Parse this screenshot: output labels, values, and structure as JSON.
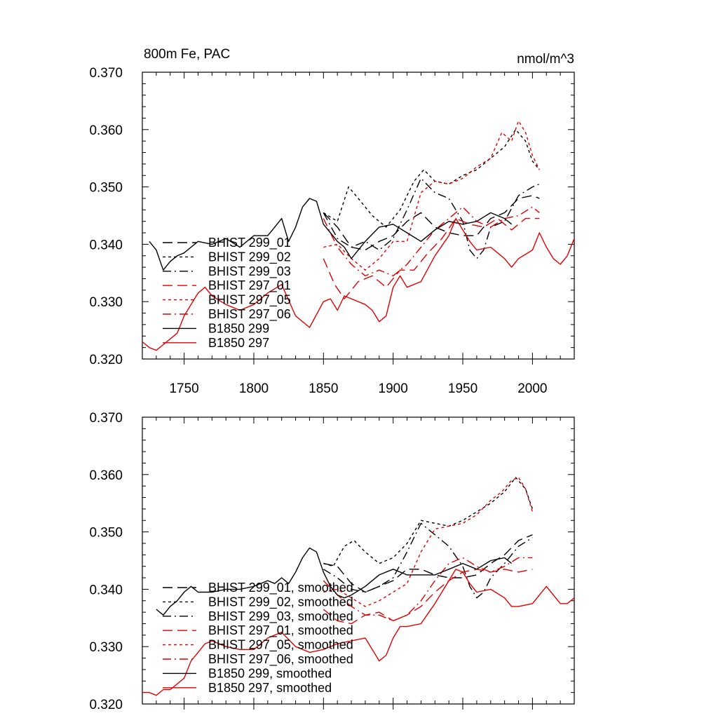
{
  "chart_data": [
    {
      "type": "line",
      "title": "800m Fe, PAC",
      "units": "nmol/m^3",
      "xlim": [
        1720,
        2030
      ],
      "ylim": [
        0.32,
        0.37
      ],
      "xticks": [
        1750,
        1800,
        1850,
        1900,
        1950,
        2000
      ],
      "xtick_labels": [
        "1750",
        "1800",
        "1850",
        "1900",
        "1950",
        "2000"
      ],
      "yticks": [
        0.32,
        0.33,
        0.34,
        0.35,
        0.36,
        0.37
      ],
      "ytick_labels": [
        "0.320",
        "0.330",
        "0.340",
        "0.350",
        "0.360",
        "0.370"
      ],
      "legend_position": "lower-left",
      "series": [
        {
          "name": "BHIST 299_01",
          "color": "#000000",
          "dash": "long-dash",
          "x": [
            1850,
            1860,
            1870,
            1880,
            1890,
            1900,
            1910,
            1920,
            1930,
            1940,
            1950,
            1960,
            1970,
            1980,
            1990,
            2000,
            2005
          ],
          "y": [
            0.3455,
            0.343,
            0.3395,
            0.339,
            0.3405,
            0.3415,
            0.344,
            0.3455,
            0.343,
            0.342,
            0.3415,
            0.3415,
            0.3445,
            0.3455,
            0.348,
            0.3485,
            0.348
          ]
        },
        {
          "name": "BHIST 299_02",
          "color": "#000000",
          "dash": "short-dash",
          "x": [
            1850,
            1860,
            1868,
            1875,
            1885,
            1895,
            1905,
            1915,
            1922,
            1930,
            1940,
            1950,
            1960,
            1970,
            1980,
            1988,
            1995,
            2000,
            2005
          ],
          "y": [
            0.3455,
            0.344,
            0.35,
            0.348,
            0.345,
            0.343,
            0.346,
            0.351,
            0.353,
            0.351,
            0.3505,
            0.352,
            0.353,
            0.355,
            0.357,
            0.36,
            0.358,
            0.3545,
            0.353
          ]
        },
        {
          "name": "BHIST 299_03",
          "color": "#000000",
          "dash": "dash-dot",
          "x": [
            1850,
            1860,
            1870,
            1880,
            1890,
            1900,
            1910,
            1920,
            1930,
            1940,
            1950,
            1955,
            1960,
            1965,
            1970,
            1980,
            1990,
            2000,
            2005
          ],
          "y": [
            0.3455,
            0.341,
            0.3395,
            0.3405,
            0.339,
            0.341,
            0.346,
            0.3515,
            0.349,
            0.348,
            0.344,
            0.339,
            0.3375,
            0.339,
            0.343,
            0.344,
            0.3485,
            0.35,
            0.3505
          ]
        },
        {
          "name": "BHIST 297_01",
          "color": "#e00000",
          "dash": "long-dash",
          "x": [
            1850,
            1858,
            1865,
            1875,
            1885,
            1895,
            1905,
            1915,
            1925,
            1935,
            1945,
            1955,
            1965,
            1975,
            1985,
            1995,
            2005
          ],
          "y": [
            0.3375,
            0.333,
            0.3305,
            0.3335,
            0.3345,
            0.3325,
            0.3355,
            0.3355,
            0.3385,
            0.341,
            0.3445,
            0.3435,
            0.343,
            0.3445,
            0.3425,
            0.3445,
            0.3445
          ]
        },
        {
          "name": "BHIST 297_05",
          "color": "#e00000",
          "dash": "short-dash",
          "x": [
            1850,
            1860,
            1870,
            1880,
            1890,
            1900,
            1910,
            1920,
            1930,
            1940,
            1950,
            1960,
            1970,
            1978,
            1985,
            1990,
            1995,
            2000,
            2005
          ],
          "y": [
            0.3395,
            0.34,
            0.3375,
            0.3355,
            0.3375,
            0.3405,
            0.3405,
            0.349,
            0.351,
            0.3505,
            0.3515,
            0.3535,
            0.355,
            0.3595,
            0.358,
            0.3615,
            0.3595,
            0.3555,
            0.353
          ]
        },
        {
          "name": "BHIST 297_06",
          "color": "#e00000",
          "dash": "dash-dot",
          "x": [
            1850,
            1860,
            1870,
            1880,
            1890,
            1900,
            1910,
            1920,
            1930,
            1940,
            1950,
            1960,
            1970,
            1980,
            1990,
            2000,
            2005
          ],
          "y": [
            0.3445,
            0.3395,
            0.3365,
            0.3345,
            0.3355,
            0.3345,
            0.3365,
            0.3395,
            0.3425,
            0.3445,
            0.3465,
            0.344,
            0.343,
            0.3445,
            0.345,
            0.3465,
            0.3455
          ]
        },
        {
          "name": "B1850 299",
          "color": "#000000",
          "dash": "solid",
          "x": [
            1725,
            1730,
            1735,
            1740,
            1745,
            1750,
            1755,
            1760,
            1770,
            1780,
            1790,
            1800,
            1810,
            1815,
            1820,
            1825,
            1830,
            1835,
            1840,
            1845,
            1850,
            1855,
            1860,
            1865,
            1870,
            1880,
            1890,
            1900,
            1910,
            1920,
            1930,
            1940,
            1950,
            1960,
            1970,
            1980,
            1985
          ],
          "y": [
            0.3405,
            0.339,
            0.3355,
            0.337,
            0.338,
            0.3385,
            0.3395,
            0.3405,
            0.34,
            0.341,
            0.3395,
            0.3415,
            0.3415,
            0.343,
            0.3445,
            0.3405,
            0.343,
            0.3465,
            0.348,
            0.3475,
            0.3435,
            0.342,
            0.3405,
            0.3395,
            0.3375,
            0.3405,
            0.343,
            0.3435,
            0.342,
            0.3405,
            0.3425,
            0.344,
            0.3435,
            0.344,
            0.3455,
            0.3445,
            0.3435
          ]
        },
        {
          "name": "B1850 297",
          "color": "#e00000",
          "dash": "solid",
          "x": [
            1720,
            1725,
            1730,
            1735,
            1740,
            1745,
            1750,
            1755,
            1760,
            1765,
            1770,
            1780,
            1790,
            1800,
            1810,
            1820,
            1830,
            1840,
            1850,
            1855,
            1860,
            1865,
            1870,
            1880,
            1885,
            1890,
            1895,
            1900,
            1905,
            1910,
            1920,
            1930,
            1940,
            1945,
            1950,
            1955,
            1960,
            1970,
            1980,
            1985,
            1990,
            2000,
            2005,
            2010,
            2015,
            2020,
            2025,
            2030
          ],
          "y": [
            0.323,
            0.322,
            0.3215,
            0.3225,
            0.3235,
            0.3245,
            0.3275,
            0.3295,
            0.3315,
            0.3325,
            0.331,
            0.3295,
            0.3285,
            0.3295,
            0.3315,
            0.333,
            0.3275,
            0.3255,
            0.33,
            0.3305,
            0.3285,
            0.331,
            0.3305,
            0.3295,
            0.3285,
            0.3265,
            0.3275,
            0.3325,
            0.3345,
            0.3325,
            0.3335,
            0.338,
            0.3415,
            0.3445,
            0.3425,
            0.3405,
            0.339,
            0.3395,
            0.3375,
            0.336,
            0.3375,
            0.339,
            0.342,
            0.3395,
            0.3375,
            0.3365,
            0.338,
            0.341
          ]
        }
      ]
    },
    {
      "type": "line",
      "xlim": [
        1720,
        2030
      ],
      "ylim": [
        0.32,
        0.37
      ],
      "xticks": [
        1750,
        1800,
        1850,
        1900,
        1950,
        2000
      ],
      "yticks": [
        0.32,
        0.33,
        0.34,
        0.35,
        0.36,
        0.37
      ],
      "ytick_labels": [
        "0.320",
        "0.330",
        "0.340",
        "0.350",
        "0.360",
        "0.370"
      ],
      "legend_position": "lower-left",
      "series": [
        {
          "name": "BHIST 299_01, smoothed",
          "color": "#000000",
          "dash": "long-dash",
          "x": [
            1850,
            1860,
            1870,
            1880,
            1890,
            1900,
            1910,
            1920,
            1930,
            1940,
            1950,
            1960,
            1970,
            1980,
            1990,
            2000
          ],
          "y": [
            0.3445,
            0.344,
            0.341,
            0.3395,
            0.3405,
            0.3415,
            0.3435,
            0.3435,
            0.3425,
            0.342,
            0.342,
            0.3425,
            0.3445,
            0.346,
            0.3485,
            0.3495
          ]
        },
        {
          "name": "BHIST 299_02, smoothed",
          "color": "#000000",
          "dash": "short-dash",
          "x": [
            1850,
            1857,
            1865,
            1872,
            1880,
            1890,
            1900,
            1910,
            1920,
            1930,
            1940,
            1950,
            1960,
            1970,
            1980,
            1988,
            1995,
            2000
          ],
          "y": [
            0.3445,
            0.344,
            0.3475,
            0.3485,
            0.3465,
            0.3445,
            0.3455,
            0.348,
            0.352,
            0.3515,
            0.351,
            0.352,
            0.3535,
            0.355,
            0.357,
            0.3595,
            0.3575,
            0.354
          ]
        },
        {
          "name": "BHIST 299_03, smoothed",
          "color": "#000000",
          "dash": "dash-dot",
          "x": [
            1850,
            1860,
            1870,
            1880,
            1890,
            1900,
            1910,
            1920,
            1930,
            1940,
            1950,
            1955,
            1960,
            1965,
            1970,
            1980,
            1990,
            2000
          ],
          "y": [
            0.3435,
            0.342,
            0.34,
            0.3395,
            0.3405,
            0.342,
            0.3465,
            0.3515,
            0.3495,
            0.3475,
            0.344,
            0.3405,
            0.3385,
            0.3395,
            0.342,
            0.3445,
            0.3475,
            0.349
          ]
        },
        {
          "name": "BHIST 297_01, smoothed",
          "color": "#e00000",
          "dash": "long-dash",
          "x": [
            1850,
            1860,
            1870,
            1880,
            1890,
            1900,
            1910,
            1920,
            1930,
            1940,
            1950,
            1960,
            1970,
            1980,
            1990,
            2000
          ],
          "y": [
            0.3365,
            0.3345,
            0.334,
            0.3355,
            0.336,
            0.3345,
            0.3355,
            0.337,
            0.3395,
            0.3415,
            0.343,
            0.3435,
            0.343,
            0.3435,
            0.343,
            0.3435
          ]
        },
        {
          "name": "BHIST 297_05, smoothed",
          "color": "#e00000",
          "dash": "short-dash",
          "x": [
            1850,
            1860,
            1870,
            1880,
            1890,
            1900,
            1910,
            1920,
            1930,
            1940,
            1950,
            1960,
            1970,
            1978,
            1985,
            1990,
            1995,
            2000
          ],
          "y": [
            0.3395,
            0.34,
            0.3385,
            0.337,
            0.338,
            0.3395,
            0.341,
            0.3465,
            0.3505,
            0.351,
            0.3515,
            0.353,
            0.3555,
            0.357,
            0.359,
            0.3595,
            0.3575,
            0.3535
          ]
        },
        {
          "name": "BHIST 297_06, smoothed",
          "color": "#e00000",
          "dash": "dash-dot",
          "x": [
            1850,
            1860,
            1870,
            1880,
            1890,
            1900,
            1910,
            1920,
            1930,
            1940,
            1950,
            1960,
            1970,
            1980,
            1990,
            2000
          ],
          "y": [
            0.3415,
            0.339,
            0.337,
            0.3355,
            0.3355,
            0.3345,
            0.3355,
            0.338,
            0.3415,
            0.3445,
            0.3455,
            0.344,
            0.343,
            0.344,
            0.3455,
            0.3455
          ]
        },
        {
          "name": "B1850 299, smoothed",
          "color": "#000000",
          "dash": "solid",
          "x": [
            1730,
            1735,
            1740,
            1745,
            1750,
            1755,
            1760,
            1770,
            1780,
            1790,
            1800,
            1810,
            1815,
            1820,
            1825,
            1830,
            1835,
            1840,
            1845,
            1850,
            1855,
            1860,
            1865,
            1870,
            1880,
            1890,
            1900,
            1910,
            1920,
            1930,
            1940,
            1950,
            1960,
            1970,
            1980,
            1985
          ],
          "y": [
            0.3365,
            0.3355,
            0.337,
            0.338,
            0.3395,
            0.3405,
            0.3395,
            0.3395,
            0.34,
            0.34,
            0.3405,
            0.3415,
            0.341,
            0.342,
            0.341,
            0.343,
            0.3455,
            0.3472,
            0.3465,
            0.343,
            0.3405,
            0.339,
            0.3385,
            0.339,
            0.3405,
            0.3425,
            0.3435,
            0.3425,
            0.3425,
            0.3425,
            0.3435,
            0.3445,
            0.3435,
            0.345,
            0.3455,
            0.3445
          ]
        },
        {
          "name": "B1850 297, smoothed",
          "color": "#e00000",
          "dash": "solid",
          "x": [
            1720,
            1725,
            1730,
            1735,
            1740,
            1745,
            1750,
            1755,
            1760,
            1765,
            1770,
            1780,
            1790,
            1800,
            1810,
            1820,
            1830,
            1840,
            1850,
            1860,
            1870,
            1880,
            1885,
            1890,
            1895,
            1900,
            1905,
            1910,
            1920,
            1930,
            1940,
            1945,
            1950,
            1955,
            1960,
            1970,
            1980,
            1985,
            1990,
            2000,
            2005,
            2010,
            2015,
            2020,
            2025,
            2030
          ],
          "y": [
            0.322,
            0.322,
            0.3215,
            0.3225,
            0.3225,
            0.3235,
            0.3245,
            0.3275,
            0.329,
            0.3305,
            0.331,
            0.33,
            0.3295,
            0.3295,
            0.3315,
            0.3325,
            0.33,
            0.329,
            0.3295,
            0.3305,
            0.331,
            0.3315,
            0.3295,
            0.3275,
            0.3285,
            0.3315,
            0.3335,
            0.3335,
            0.334,
            0.3375,
            0.3415,
            0.3435,
            0.343,
            0.341,
            0.3395,
            0.34,
            0.3385,
            0.337,
            0.337,
            0.3375,
            0.339,
            0.3405,
            0.339,
            0.3375,
            0.3375,
            0.3385
          ]
        }
      ]
    }
  ]
}
